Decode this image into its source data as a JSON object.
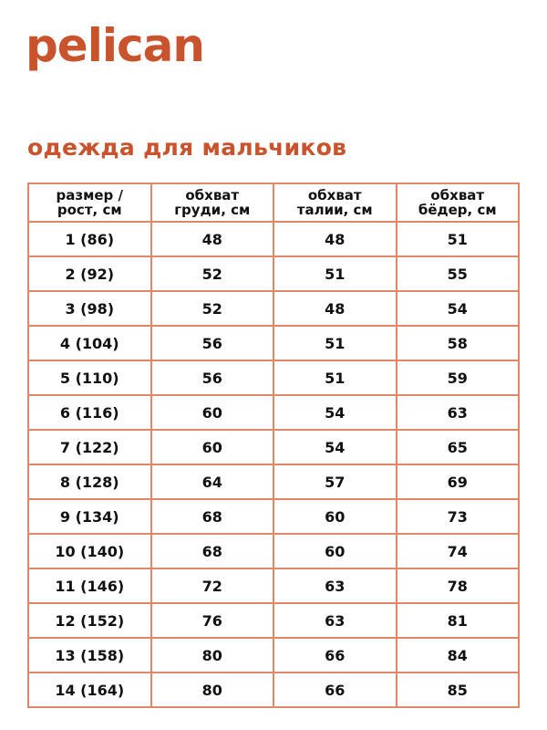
{
  "logo": "pelican",
  "title": "одежда для мальчиков",
  "accent_color": "#c8532c",
  "table": {
    "headers": [
      [
        "размер /",
        "рост, см"
      ],
      [
        "обхват",
        "груди, см"
      ],
      [
        "обхват",
        "талии, см"
      ],
      [
        "обхват",
        "бёдер, см"
      ]
    ],
    "rows": [
      [
        "1 (86)",
        "48",
        "48",
        "51"
      ],
      [
        "2 (92)",
        "52",
        "51",
        "55"
      ],
      [
        "3 (98)",
        "52",
        "48",
        "54"
      ],
      [
        "4 (104)",
        "56",
        "51",
        "58"
      ],
      [
        "5 (110)",
        "56",
        "51",
        "59"
      ],
      [
        "6 (116)",
        "60",
        "54",
        "63"
      ],
      [
        "7 (122)",
        "60",
        "54",
        "65"
      ],
      [
        "8 (128)",
        "64",
        "57",
        "69"
      ],
      [
        "9 (134)",
        "68",
        "60",
        "73"
      ],
      [
        "10 (140)",
        "68",
        "60",
        "74"
      ],
      [
        "11 (146)",
        "72",
        "63",
        "78"
      ],
      [
        "12 (152)",
        "76",
        "63",
        "81"
      ],
      [
        "13 (158)",
        "80",
        "66",
        "84"
      ],
      [
        "14 (164)",
        "80",
        "66",
        "85"
      ]
    ]
  }
}
